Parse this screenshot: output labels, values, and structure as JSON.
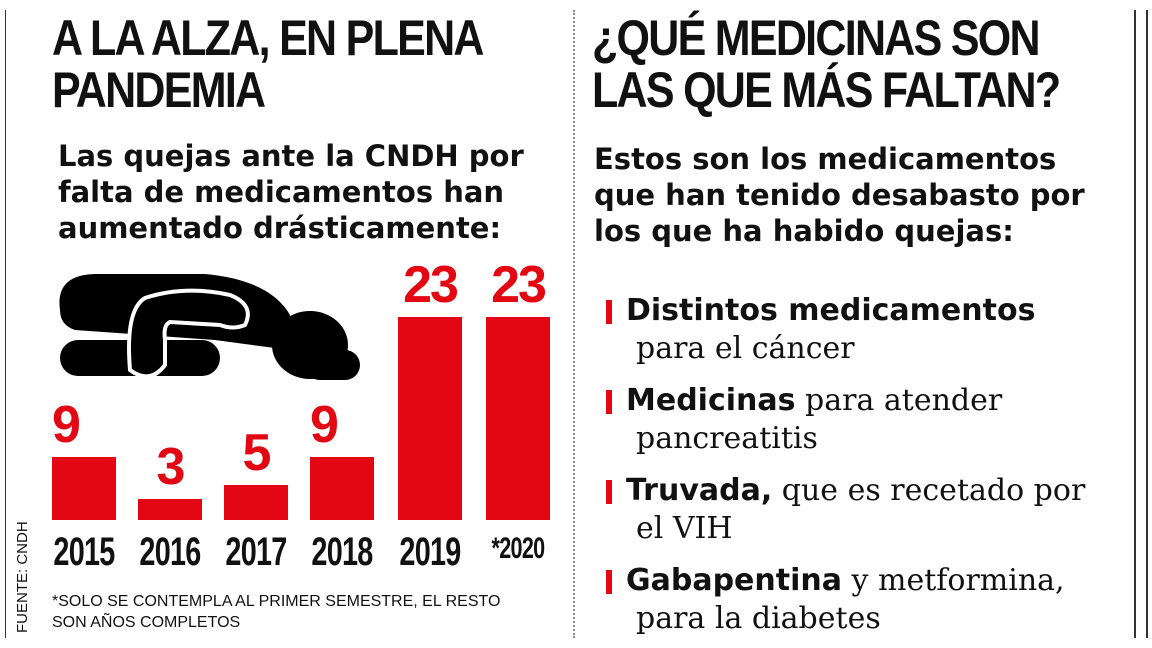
{
  "left": {
    "title_lines": [
      "A LA ALZA, EN PLENA",
      "PANDEMIA"
    ],
    "subtitle_lines": [
      "Las quejas ante la CNDH por",
      "falta de medicamentos han",
      "aumentado drásticamente:"
    ],
    "note_lines": [
      "*SOLO SE CONTEMPLA AL PRIMER SEMESTRE, EL RESTO",
      "SON AÑOS COMPLETOS"
    ],
    "source": "FUENTE: CNDH",
    "pictogram": "person-kneeling-icon"
  },
  "chart_data": {
    "type": "bar",
    "categories": [
      "2015",
      "2016",
      "2017",
      "2018",
      "2019",
      "*2020"
    ],
    "values": [
      9,
      3,
      5,
      9,
      23,
      23
    ],
    "labels": [
      "9",
      "3",
      "5",
      "9",
      "23",
      "23"
    ],
    "bar_color": "#e30613",
    "grid": false
  },
  "right": {
    "title_lines": [
      "¿QUÉ MEDICINAS SON",
      "LAS QUE MÁS FALTAN?"
    ],
    "subtitle_lines": [
      "Estos son los medicamentos",
      "que han tenido desabasto por",
      "los que ha habido quejas:"
    ],
    "items": [
      {
        "bold": "Distintos medicamentos",
        "rest": "",
        "line2": "para el cáncer"
      },
      {
        "bold": "Medicinas",
        "rest": " para atender",
        "line2": "pancreatitis"
      },
      {
        "bold": "Truvada,",
        "rest": " que es recetado por",
        "line2": "el VIH"
      },
      {
        "bold": "Gabapentina",
        "rest": " y metformina,",
        "line2": "para la diabetes"
      }
    ]
  }
}
